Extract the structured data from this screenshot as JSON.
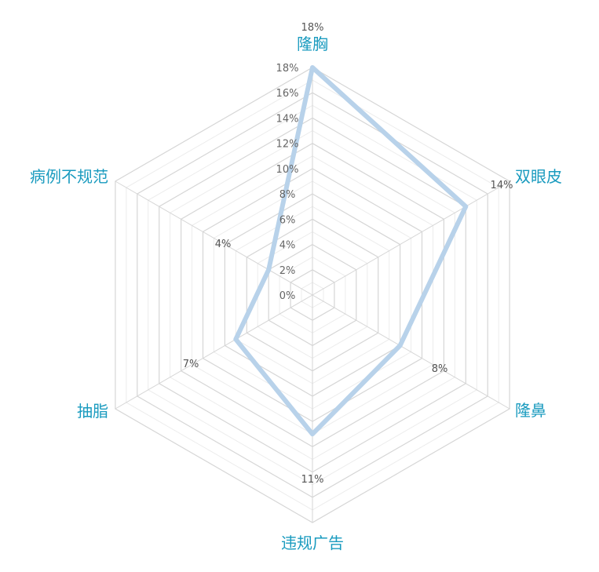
{
  "chart_data": {
    "type": "radar",
    "categories": [
      "隆胸",
      "双眼皮",
      "隆鼻",
      "违规广告",
      "抽脂",
      "病例不规范"
    ],
    "series": [
      {
        "values": [
          18,
          14,
          8,
          11,
          7,
          4
        ]
      }
    ],
    "value_labels": [
      "18%",
      "14%",
      "8%",
      "11%",
      "7%",
      "4%"
    ],
    "ticks": [
      0,
      2,
      4,
      6,
      8,
      10,
      12,
      14,
      16,
      18
    ],
    "tick_labels": [
      "0%",
      "2%",
      "4%",
      "6%",
      "8%",
      "10%",
      "12%",
      "14%",
      "16%",
      "18%"
    ],
    "rmax": 18,
    "grid": true,
    "legend": "none",
    "colors": {
      "series_line": "#b8d2ea",
      "category_text": "#1a9bbf",
      "grid_major": "#d6d6d6",
      "grid_minor": "#ececec"
    }
  }
}
